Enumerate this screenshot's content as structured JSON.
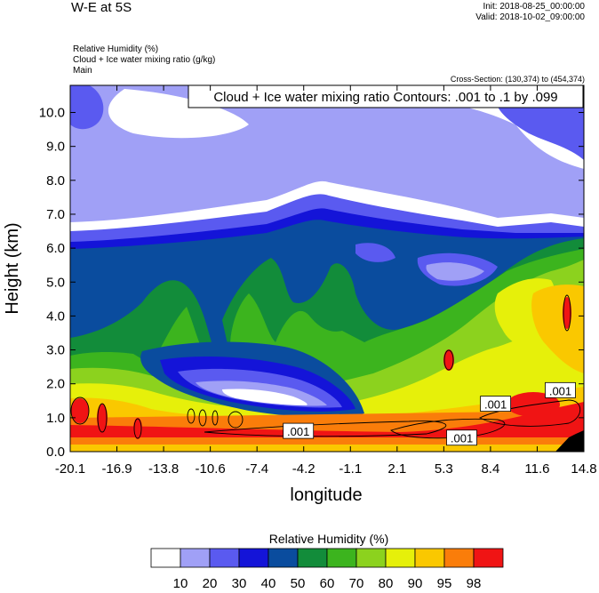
{
  "header": {
    "title": "W-E at 5S",
    "init": "Init: 2018-08-25_00:00:00",
    "valid": "Valid: 2018-10-02_09:00:00",
    "field1": "Relative Humidity   (%)",
    "field2": "Cloud + Ice water mixing ratio   (g/kg)",
    "field3": "Main",
    "cross_section": "Cross-Section: (130,374) to (454,374)"
  },
  "colors": {
    "rh_levels": [
      "#ffffff",
      "#a0a0f6",
      "#5a5af0",
      "#1414d8",
      "#0a4c9e",
      "#128c3a",
      "#3cb41e",
      "#8cd21e",
      "#e6f00a",
      "#fac800",
      "#fa7d0a",
      "#f01414"
    ]
  },
  "chart_data": {
    "type": "heatmap",
    "title": "W-E at 5S",
    "xlabel": "longitude",
    "ylabel": "Height (km)",
    "xlim": [
      -20.1,
      14.8
    ],
    "ylim": [
      0.0,
      10.8
    ],
    "x_ticks": [
      "-20.1",
      "-16.9",
      "-13.8",
      "-10.6",
      "-7.4",
      "-4.2",
      "-1.1",
      "2.1",
      "5.3",
      "8.4",
      "11.6",
      "14.8"
    ],
    "y_ticks": [
      "0.0",
      "1.0",
      "2.0",
      "3.0",
      "4.0",
      "5.0",
      "6.0",
      "7.0",
      "8.0",
      "9.0",
      "10.0"
    ],
    "y_tick_values": [
      0,
      1,
      2,
      3,
      4,
      5,
      6,
      7,
      8,
      9,
      10
    ],
    "fill_field": "Relative Humidity (%)",
    "contour_field": "Cloud + Ice water mixing ratio (g/kg)",
    "contour_info": "Cloud + Ice water mixing ratio Contours: .001 to .1 by .099",
    "contour_labels": [
      {
        "text": ".001",
        "lon": -4.6,
        "height": 0.6
      },
      {
        "text": ".001",
        "lon": 6.5,
        "height": 0.4
      },
      {
        "text": ".001",
        "lon": 8.8,
        "height": 1.4
      },
      {
        "text": ".001",
        "lon": 13.2,
        "height": 1.8
      }
    ],
    "colorbar": {
      "title": "Relative Humidity  (%)",
      "labels": [
        "10",
        "20",
        "30",
        "40",
        "50",
        "60",
        "70",
        "80",
        "90",
        "95",
        "98"
      ]
    }
  }
}
